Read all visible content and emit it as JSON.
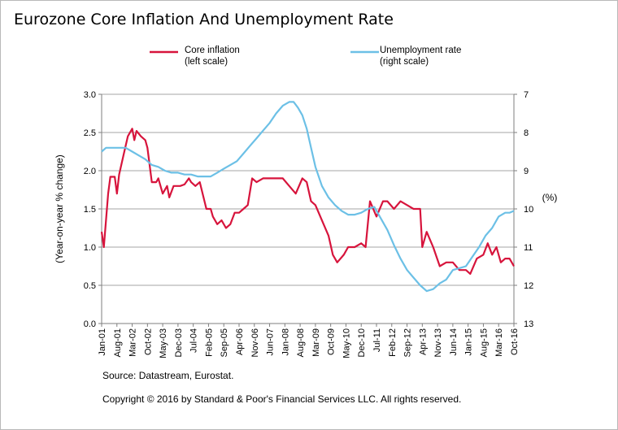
{
  "title": "Eurozone Core Inflation And Unemployment Rate",
  "source": "Source: Datastream, Eurostat.",
  "copyright": "Copyright © 2016 by Standard & Poor's Financial Services LLC. All rights reserved.",
  "colors": {
    "core_inflation": "#d7143c",
    "unemployment": "#6cc0e6",
    "grid": "#a6a6a6",
    "axis": "#7f7f7f"
  },
  "chart_data": {
    "type": "line",
    "ylabel": "(Year-on-year % change)",
    "y2label": "(%)",
    "ylim": [
      0.0,
      3.0
    ],
    "y2lim": [
      7,
      13
    ],
    "y2_inverted": true,
    "yticks": [
      "0.0",
      "0.5",
      "1.0",
      "1.5",
      "2.0",
      "2.5",
      "3.0"
    ],
    "y2ticks": [
      "7",
      "8",
      "9",
      "10",
      "11",
      "12",
      "13"
    ],
    "x_range": [
      "2001-01",
      "2016-10"
    ],
    "xticks": [
      "Jan-01",
      "Aug-01",
      "Mar-02",
      "Oct-02",
      "May-03",
      "Dec-03",
      "Jul-04",
      "Feb-05",
      "Sep-05",
      "Apr-06",
      "Nov-06",
      "Jun-07",
      "Jan-08",
      "Aug-08",
      "Mar-09",
      "Oct-09",
      "May-10",
      "Dec-10",
      "Jul-11",
      "Feb-12",
      "Sep-12",
      "Apr-13",
      "Nov-13",
      "Jun-14",
      "Jan-15",
      "Aug-15",
      "Mar-16",
      "Oct-16"
    ],
    "grid": true,
    "legend_placement": "top",
    "series": [
      {
        "name": "Core inflation",
        "legend_lines": [
          "Core inflation",
          "(left scale)"
        ],
        "axis": "left",
        "points": [
          [
            "2001-01",
            1.2
          ],
          [
            "2001-02",
            1.0
          ],
          [
            "2001-04",
            1.7
          ],
          [
            "2001-05",
            1.92
          ],
          [
            "2001-07",
            1.92
          ],
          [
            "2001-08",
            1.7
          ],
          [
            "2001-09",
            1.95
          ],
          [
            "2001-11",
            2.2
          ],
          [
            "2002-01",
            2.45
          ],
          [
            "2002-03",
            2.55
          ],
          [
            "2002-04",
            2.4
          ],
          [
            "2002-05",
            2.52
          ],
          [
            "2002-07",
            2.45
          ],
          [
            "2002-09",
            2.4
          ],
          [
            "2002-10",
            2.3
          ],
          [
            "2002-12",
            1.85
          ],
          [
            "2003-02",
            1.85
          ],
          [
            "2003-03",
            1.9
          ],
          [
            "2003-05",
            1.7
          ],
          [
            "2003-07",
            1.8
          ],
          [
            "2003-08",
            1.65
          ],
          [
            "2003-10",
            1.8
          ],
          [
            "2004-01",
            1.8
          ],
          [
            "2004-03",
            1.82
          ],
          [
            "2004-05",
            1.9
          ],
          [
            "2004-06",
            1.85
          ],
          [
            "2004-08",
            1.8
          ],
          [
            "2004-10",
            1.85
          ],
          [
            "2005-01",
            1.5
          ],
          [
            "2005-03",
            1.5
          ],
          [
            "2005-04",
            1.4
          ],
          [
            "2005-06",
            1.3
          ],
          [
            "2005-08",
            1.35
          ],
          [
            "2005-10",
            1.25
          ],
          [
            "2005-12",
            1.3
          ],
          [
            "2006-02",
            1.45
          ],
          [
            "2006-04",
            1.45
          ],
          [
            "2006-06",
            1.5
          ],
          [
            "2006-08",
            1.55
          ],
          [
            "2006-10",
            1.9
          ],
          [
            "2006-12",
            1.85
          ],
          [
            "2007-03",
            1.9
          ],
          [
            "2007-06",
            1.9
          ],
          [
            "2007-09",
            1.9
          ],
          [
            "2007-12",
            1.9
          ],
          [
            "2008-03",
            1.8
          ],
          [
            "2008-06",
            1.7
          ],
          [
            "2008-09",
            1.9
          ],
          [
            "2008-11",
            1.85
          ],
          [
            "2009-01",
            1.6
          ],
          [
            "2009-03",
            1.55
          ],
          [
            "2009-06",
            1.35
          ],
          [
            "2009-09",
            1.15
          ],
          [
            "2009-11",
            0.9
          ],
          [
            "2010-01",
            0.8
          ],
          [
            "2010-04",
            0.9
          ],
          [
            "2010-06",
            1.0
          ],
          [
            "2010-09",
            1.0
          ],
          [
            "2010-12",
            1.05
          ],
          [
            "2011-02",
            1.0
          ],
          [
            "2011-04",
            1.6
          ],
          [
            "2011-07",
            1.4
          ],
          [
            "2011-10",
            1.6
          ],
          [
            "2011-12",
            1.6
          ],
          [
            "2012-03",
            1.5
          ],
          [
            "2012-06",
            1.6
          ],
          [
            "2012-09",
            1.55
          ],
          [
            "2012-12",
            1.5
          ],
          [
            "2013-03",
            1.5
          ],
          [
            "2013-04",
            1.0
          ],
          [
            "2013-06",
            1.2
          ],
          [
            "2013-09",
            1.0
          ],
          [
            "2013-12",
            0.75
          ],
          [
            "2014-03",
            0.8
          ],
          [
            "2014-06",
            0.8
          ],
          [
            "2014-09",
            0.7
          ],
          [
            "2014-12",
            0.7
          ],
          [
            "2015-02",
            0.65
          ],
          [
            "2015-05",
            0.85
          ],
          [
            "2015-08",
            0.9
          ],
          [
            "2015-10",
            1.05
          ],
          [
            "2015-12",
            0.9
          ],
          [
            "2016-02",
            1.0
          ],
          [
            "2016-04",
            0.8
          ],
          [
            "2016-06",
            0.85
          ],
          [
            "2016-08",
            0.85
          ],
          [
            "2016-10",
            0.75
          ]
        ]
      },
      {
        "name": "Unemployment rate",
        "legend_lines": [
          "Unemployment rate",
          "(right scale)"
        ],
        "axis": "right",
        "points": [
          [
            "2001-01",
            8.5
          ],
          [
            "2001-03",
            8.4
          ],
          [
            "2001-06",
            8.4
          ],
          [
            "2001-09",
            8.4
          ],
          [
            "2001-12",
            8.4
          ],
          [
            "2002-03",
            8.5
          ],
          [
            "2002-06",
            8.6
          ],
          [
            "2002-09",
            8.7
          ],
          [
            "2002-12",
            8.85
          ],
          [
            "2003-03",
            8.9
          ],
          [
            "2003-06",
            9.0
          ],
          [
            "2003-09",
            9.05
          ],
          [
            "2003-12",
            9.05
          ],
          [
            "2004-03",
            9.1
          ],
          [
            "2004-06",
            9.1
          ],
          [
            "2004-09",
            9.15
          ],
          [
            "2004-12",
            9.15
          ],
          [
            "2005-03",
            9.15
          ],
          [
            "2005-06",
            9.05
          ],
          [
            "2005-09",
            8.95
          ],
          [
            "2005-12",
            8.85
          ],
          [
            "2006-03",
            8.75
          ],
          [
            "2006-06",
            8.55
          ],
          [
            "2006-09",
            8.35
          ],
          [
            "2006-12",
            8.15
          ],
          [
            "2007-03",
            7.95
          ],
          [
            "2007-06",
            7.75
          ],
          [
            "2007-09",
            7.5
          ],
          [
            "2007-12",
            7.3
          ],
          [
            "2008-03",
            7.2
          ],
          [
            "2008-05",
            7.2
          ],
          [
            "2008-07",
            7.35
          ],
          [
            "2008-09",
            7.55
          ],
          [
            "2008-11",
            7.9
          ],
          [
            "2009-01",
            8.4
          ],
          [
            "2009-03",
            8.9
          ],
          [
            "2009-06",
            9.4
          ],
          [
            "2009-09",
            9.7
          ],
          [
            "2009-12",
            9.9
          ],
          [
            "2010-03",
            10.05
          ],
          [
            "2010-06",
            10.15
          ],
          [
            "2010-09",
            10.15
          ],
          [
            "2010-12",
            10.1
          ],
          [
            "2011-03",
            10.0
          ],
          [
            "2011-06",
            9.95
          ],
          [
            "2011-09",
            10.25
          ],
          [
            "2011-12",
            10.55
          ],
          [
            "2012-03",
            10.95
          ],
          [
            "2012-06",
            11.3
          ],
          [
            "2012-09",
            11.6
          ],
          [
            "2012-12",
            11.8
          ],
          [
            "2013-03",
            12.0
          ],
          [
            "2013-06",
            12.15
          ],
          [
            "2013-09",
            12.1
          ],
          [
            "2013-12",
            11.95
          ],
          [
            "2014-03",
            11.85
          ],
          [
            "2014-06",
            11.6
          ],
          [
            "2014-09",
            11.55
          ],
          [
            "2014-12",
            11.5
          ],
          [
            "2015-03",
            11.25
          ],
          [
            "2015-06",
            11.0
          ],
          [
            "2015-09",
            10.7
          ],
          [
            "2015-12",
            10.5
          ],
          [
            "2016-03",
            10.2
          ],
          [
            "2016-06",
            10.1
          ],
          [
            "2016-08",
            10.1
          ],
          [
            "2016-10",
            10.05
          ]
        ]
      }
    ]
  }
}
